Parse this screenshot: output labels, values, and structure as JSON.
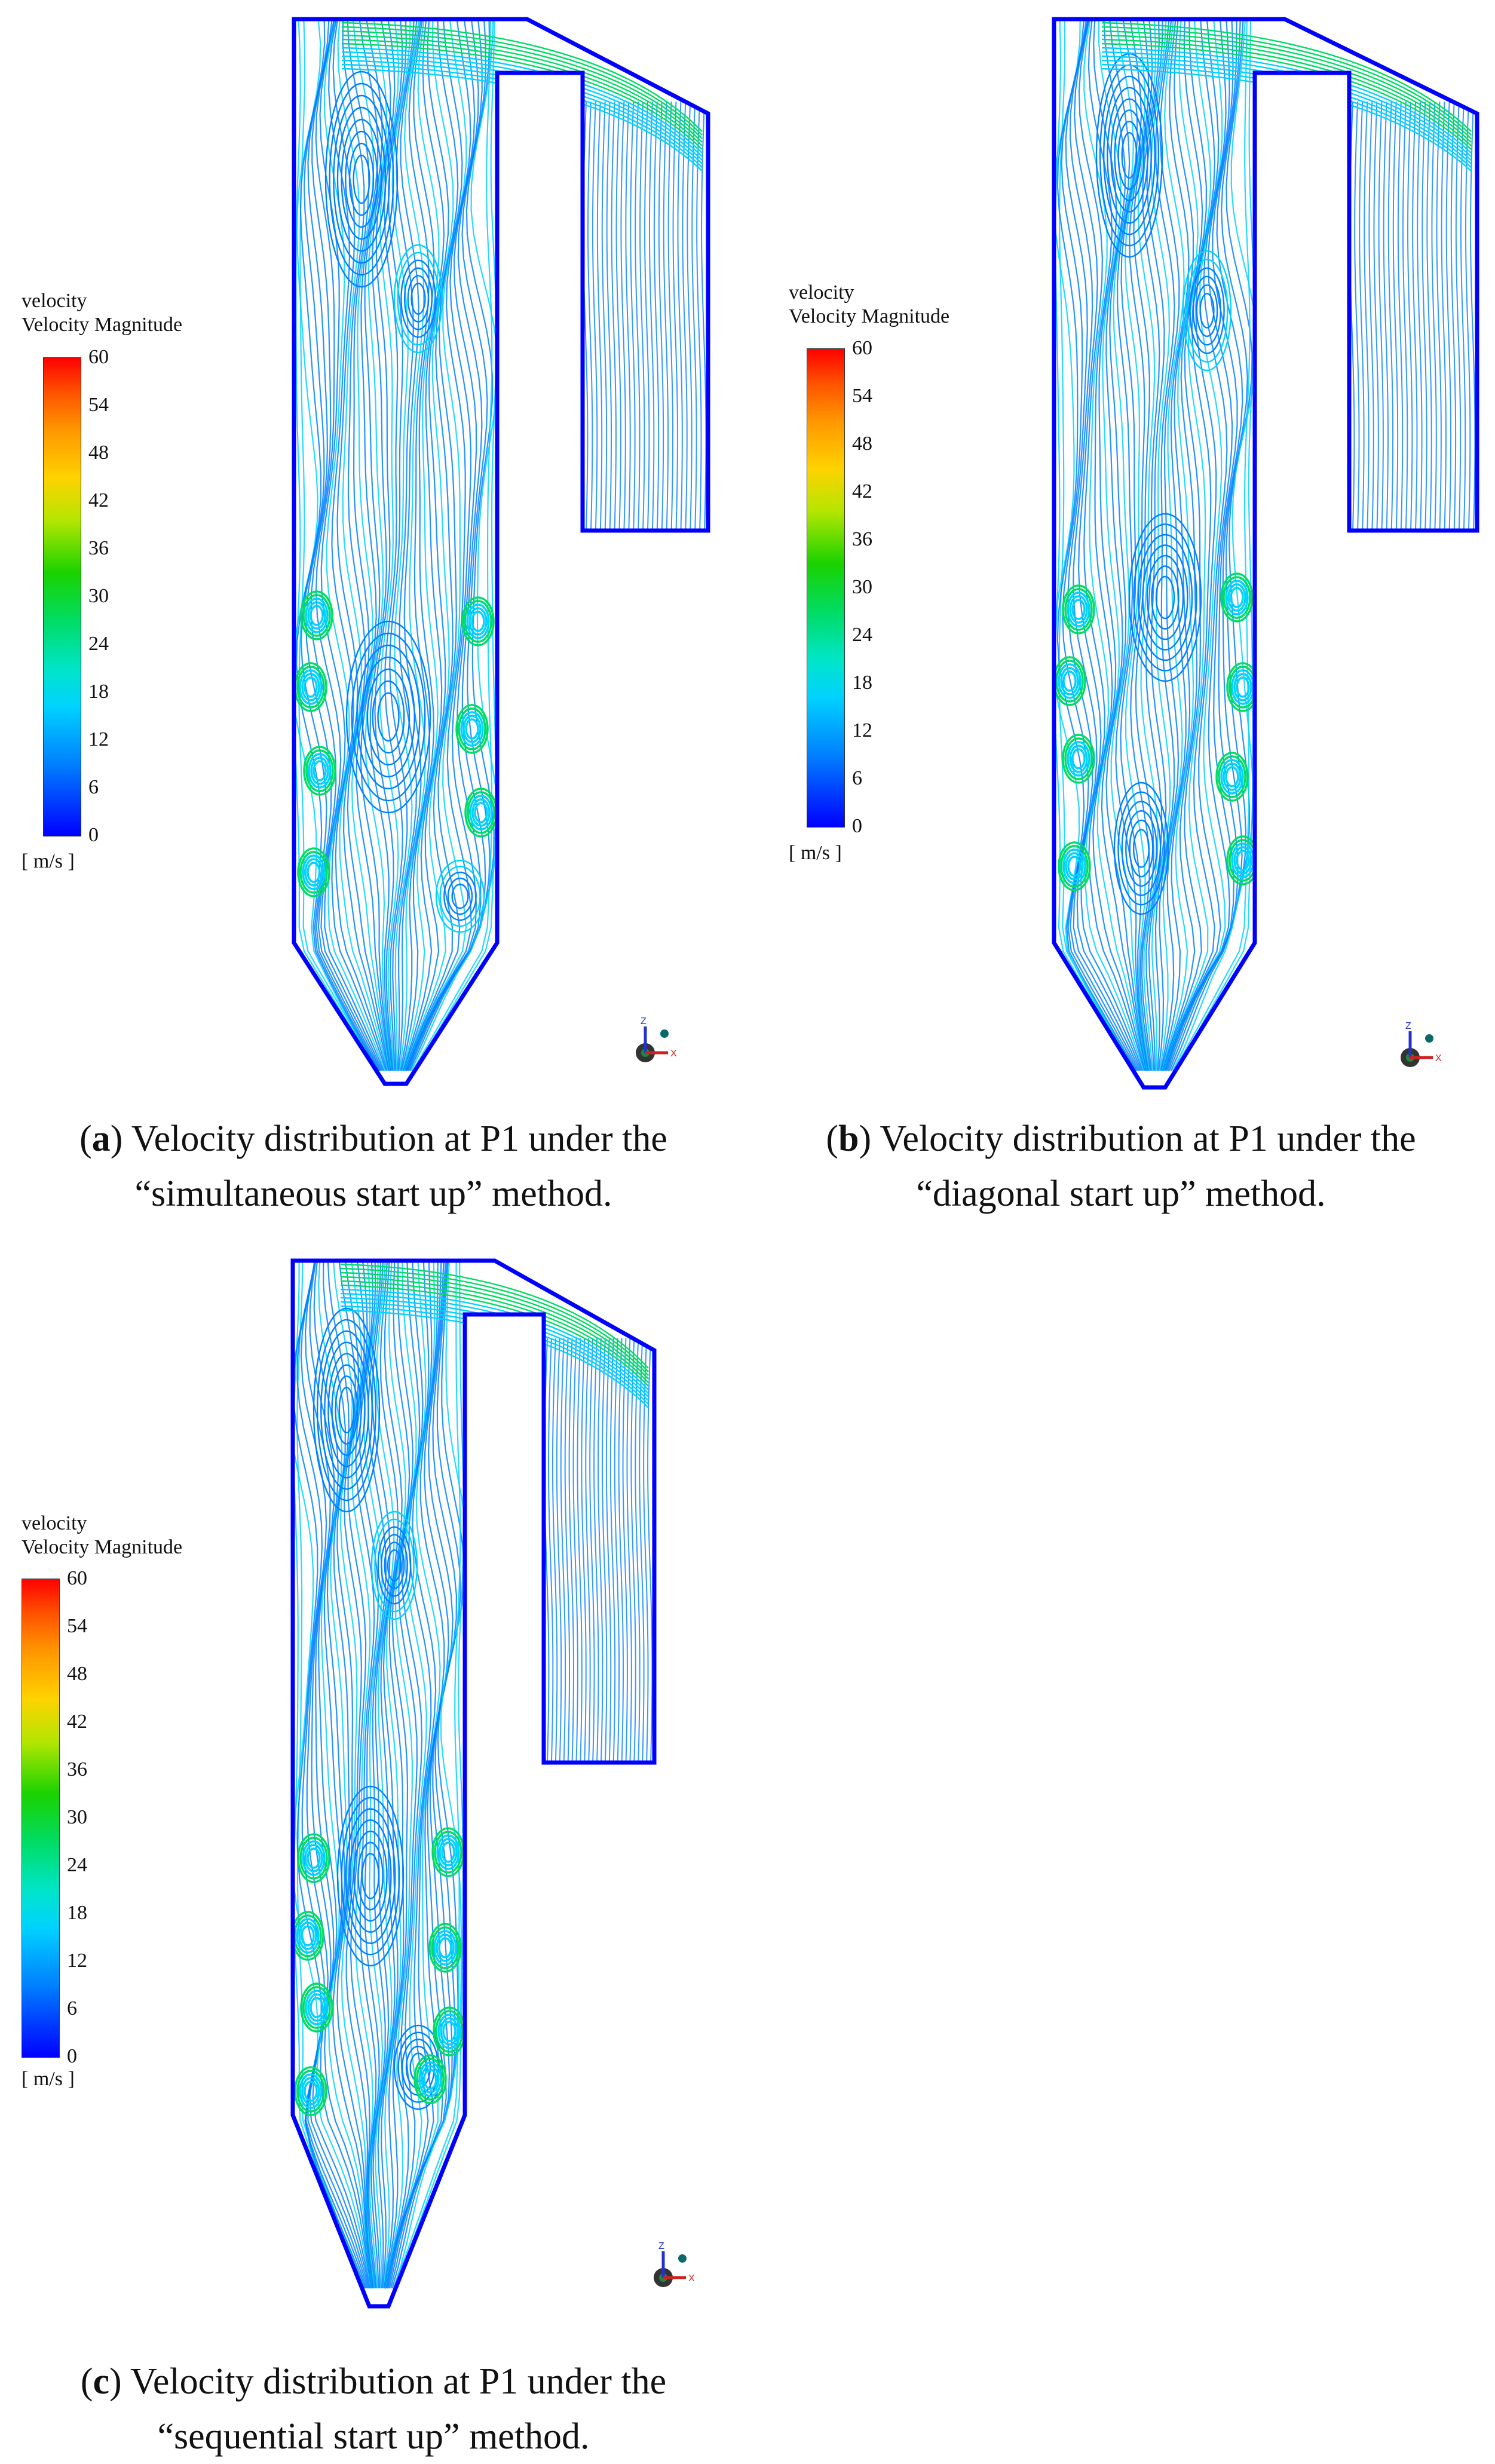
{
  "legend": {
    "title_line1": "velocity",
    "title_line2": "Velocity Magnitude",
    "ticks": [
      "60",
      "54",
      "48",
      "42",
      "36",
      "30",
      "24",
      "18",
      "12",
      "6",
      "0"
    ],
    "unit": "[ m/s ]",
    "colors": [
      "#0000ff",
      "#0080ff",
      "#00d2ff",
      "#00e5c8",
      "#00dc64",
      "#19d200",
      "#b4e600",
      "#ffd200",
      "#ff9600",
      "#ff5000",
      "#ff0000"
    ]
  },
  "axis": {
    "z_label": "Z",
    "x_label": "X"
  },
  "panels": [
    {
      "id": "a",
      "caption_letter": "a",
      "caption_line1": ") Velocity distribution at P1 under the",
      "caption_line2": "“simultaneous start up” method."
    },
    {
      "id": "b",
      "caption_letter": "b",
      "caption_line1": ") Velocity distribution at P1 under the",
      "caption_line2": "“diagonal start up” method."
    },
    {
      "id": "c",
      "caption_letter": "c",
      "caption_line1": ") Velocity distribution at P1 under the",
      "caption_line2": "“sequential start up” method."
    }
  ]
}
